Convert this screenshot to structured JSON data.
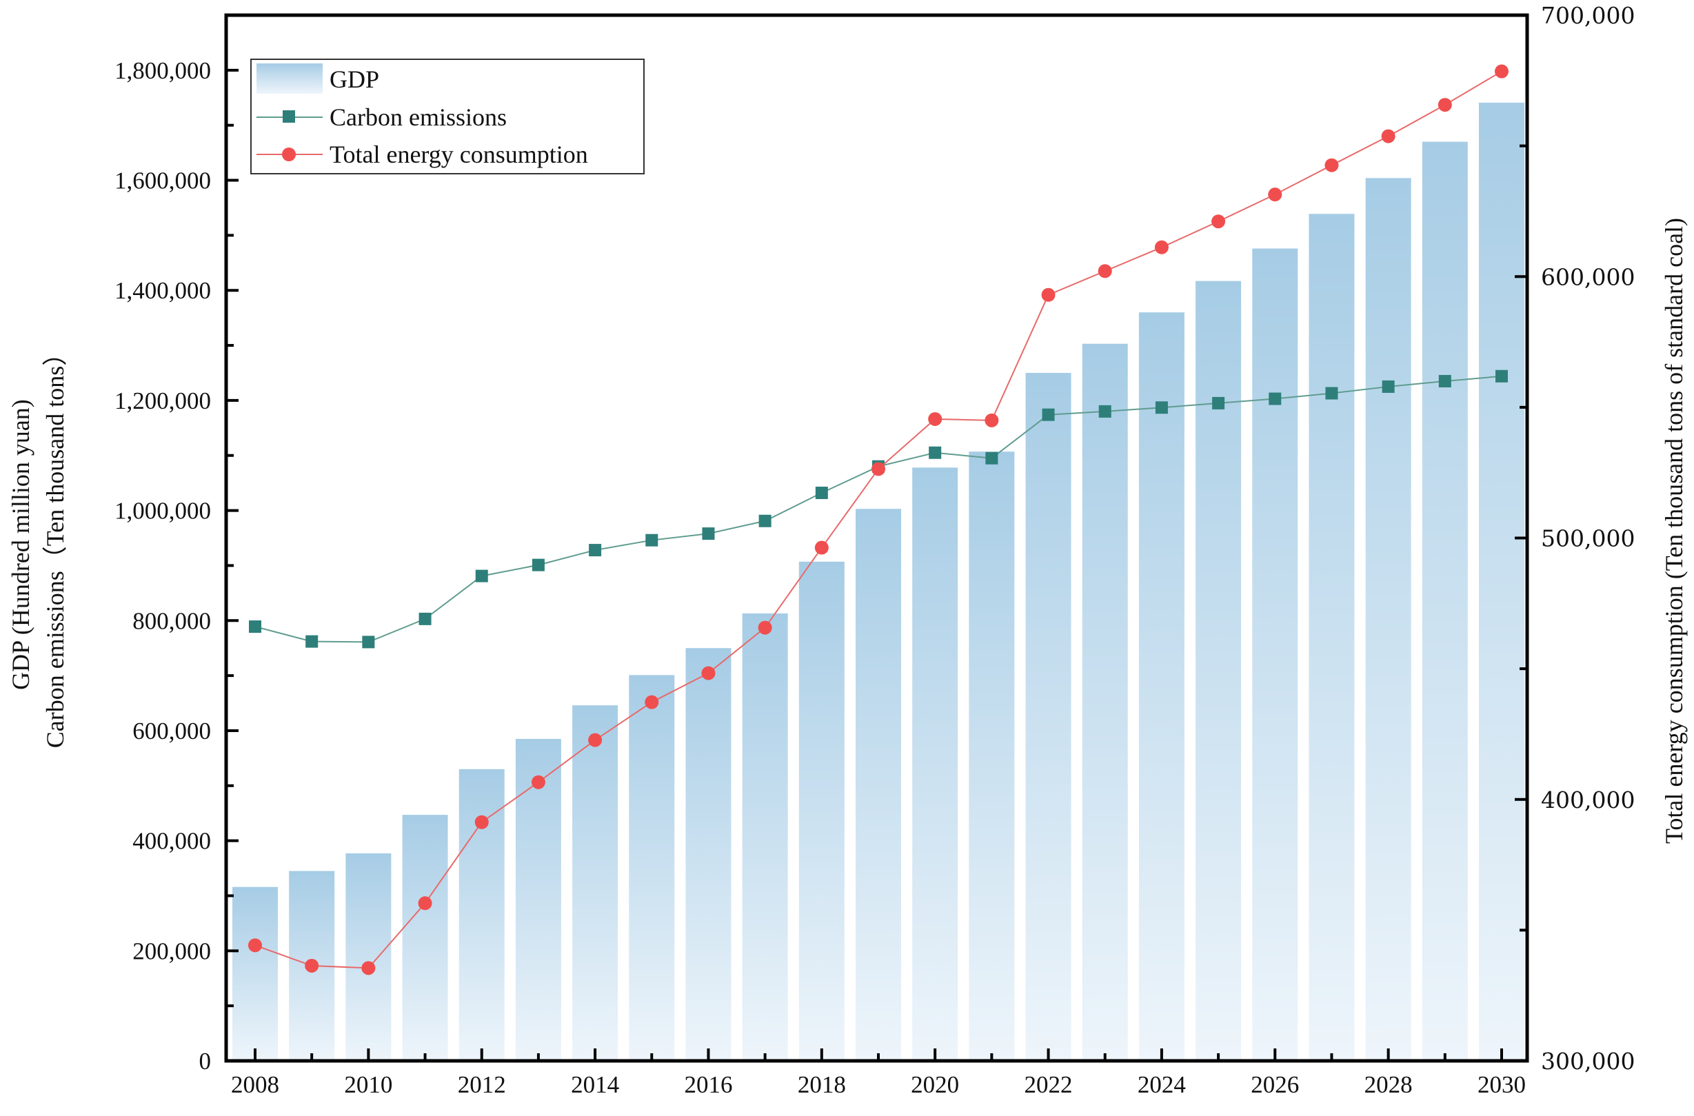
{
  "chart_data": {
    "type": "bar+line",
    "categories": [
      2008,
      2009,
      2010,
      2011,
      2012,
      2013,
      2014,
      2015,
      2016,
      2017,
      2018,
      2019,
      2020,
      2021,
      2022,
      2023,
      2024,
      2025,
      2026,
      2027,
      2028,
      2029,
      2030
    ],
    "series": [
      {
        "name": "GDP",
        "type": "bar",
        "axis": "left",
        "color": "#a8cde6",
        "values": [
          316000,
          345000,
          377000,
          447000,
          530000,
          585000,
          646000,
          701000,
          750000,
          813000,
          907000,
          1003000,
          1078000,
          1107000,
          1250000,
          1303000,
          1360000,
          1417000,
          1476000,
          1539000,
          1604000,
          1670000,
          1741000
        ]
      },
      {
        "name": "Carbon emissions",
        "type": "line",
        "axis": "left",
        "color": "#2e7f7a",
        "line_color": "#5f9c8f",
        "marker": "square",
        "values": [
          789000,
          762000,
          761000,
          803000,
          881000,
          901000,
          928000,
          946000,
          958000,
          981000,
          1032000,
          1080000,
          1105000,
          1095000,
          1174000,
          1180000,
          1187000,
          1195000,
          1203000,
          1213000,
          1225000,
          1235000,
          1244000
        ]
      },
      {
        "name": "Total energy consumption",
        "type": "line",
        "axis": "right",
        "color": "#f04e4e",
        "line_color": "#e86a6a",
        "marker": "circle",
        "values": [
          344200,
          336400,
          335500,
          360300,
          391300,
          406600,
          422700,
          437200,
          448300,
          465700,
          496300,
          526400,
          545500,
          545000,
          593000,
          602100,
          611200,
          621100,
          631400,
          642600,
          653700,
          665700,
          678500
        ]
      }
    ],
    "xlabel": "",
    "ylabel_left": [
      "GDP (Hundred million yuan)",
      "Carbon emissions（Ten thousand tons）"
    ],
    "ylabel_right": "Total energy consumption (Ten thousand tons of standard coal)",
    "ylim_left": [
      0,
      1900000
    ],
    "ylim_right": [
      300000,
      700000
    ],
    "x_tick_labels": [
      "2008",
      "2010",
      "2012",
      "2014",
      "2016",
      "2018",
      "2020",
      "2022",
      "2024",
      "2026",
      "2028",
      "2030"
    ],
    "left_tick_labels": [
      "0",
      "200,000",
      "400,000",
      "600,000",
      "800,000",
      "1,000,000",
      "1,200,000",
      "1,400,000",
      "1,600,000",
      "1,800,000"
    ],
    "left_tick_values": [
      0,
      200000,
      400000,
      600000,
      800000,
      1000000,
      1200000,
      1400000,
      1600000,
      1800000
    ],
    "right_tick_labels": [
      "300,000",
      "400,000",
      "500,000",
      "600,000",
      "700,000"
    ],
    "right_tick_values": [
      300000,
      400000,
      500000,
      600000,
      700000
    ],
    "grid": false,
    "legend": {
      "placement": "top-left",
      "entries": [
        "GDP",
        "Carbon emissions",
        "Total energy consumption"
      ]
    }
  }
}
